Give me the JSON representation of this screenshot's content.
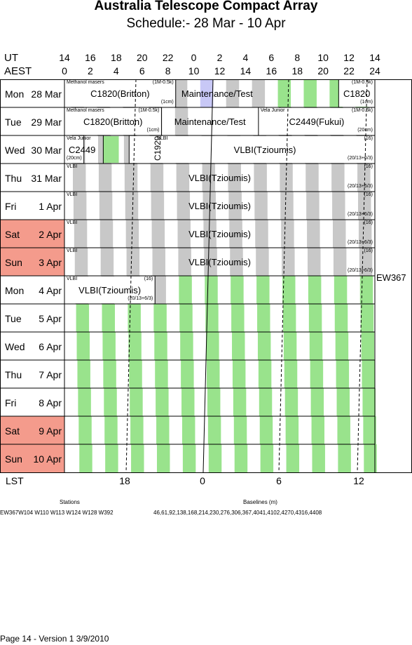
{
  "title": "Australia Telescope Compact Array",
  "subtitle": "Schedule:- 28 Mar - 10 Apr",
  "header": {
    "ut_label": "UT",
    "aest_label": "AEST",
    "ut_ticks": [
      "14",
      "16",
      "18",
      "20",
      "22",
      "0",
      "2",
      "4",
      "6",
      "8",
      "10",
      "12",
      "14"
    ],
    "aest_ticks": [
      "0",
      "2",
      "4",
      "6",
      "8",
      "10",
      "12",
      "14",
      "16",
      "18",
      "20",
      "22",
      "24"
    ]
  },
  "days": [
    {
      "name": "Mon",
      "date": "28 Mar",
      "weekend": false
    },
    {
      "name": "Tue",
      "date": "29 Mar",
      "weekend": false
    },
    {
      "name": "Wed",
      "date": "30 Mar",
      "weekend": false
    },
    {
      "name": "Thu",
      "date": "31 Mar",
      "weekend": false
    },
    {
      "name": "Fri",
      "date": "1 Apr",
      "weekend": false
    },
    {
      "name": "Sat",
      "date": "2 Apr",
      "weekend": true
    },
    {
      "name": "Sun",
      "date": "3 Apr",
      "weekend": true
    },
    {
      "name": "Mon",
      "date": "4 Apr",
      "weekend": false
    },
    {
      "name": "Tue",
      "date": "5 Apr",
      "weekend": false
    },
    {
      "name": "Wed",
      "date": "6 Apr",
      "weekend": false
    },
    {
      "name": "Thu",
      "date": "7 Apr",
      "weekend": false
    },
    {
      "name": "Fri",
      "date": "8 Apr",
      "weekend": false
    },
    {
      "name": "Sat",
      "date": "9 Apr",
      "weekend": true
    },
    {
      "name": "Sun",
      "date": "10 Apr",
      "weekend": true
    }
  ],
  "blocks": {
    "mon28_c1820": {
      "label": "C1820(Britton)",
      "tl": "Methanol masers",
      "tr": "(1M-0.5k)",
      "br": "(1cm)"
    },
    "mon28_maint": {
      "label": "Maintenance/Test"
    },
    "mon28_c1820b": {
      "label": "C1820",
      "tr": "(1M-0.5k)",
      "br": "(1cm)"
    },
    "tue29_c1820": {
      "label": "C1820(Britton)",
      "tl": "Methanol masers",
      "tr": "(1M-0.5k)",
      "br": "(1cm)"
    },
    "tue29_maint": {
      "label": "Maintenance/Test"
    },
    "tue29_c2449": {
      "label": "C2449(Fukui)",
      "tl": "Vela Junior",
      "tr": "(1M-0.5k)",
      "br": "(20cm)"
    },
    "wed30_c2449": {
      "label": "C2449",
      "tl": "Vela Junior",
      "br": "(20cm)"
    },
    "wed30_c1929": {
      "label": "C1929"
    },
    "wed30_vlbi": {
      "label": "VLBI(Tzioumis)",
      "tl": "VLBI",
      "tr": "(16)",
      "br": "(20/13+6/3)"
    },
    "thu31_vlbi": {
      "label": "VLBI(Tzioumis)",
      "tl": "VLBI",
      "tr": "(16)",
      "br": "(20/13+6/3)"
    },
    "fri1_vlbi": {
      "label": "VLBI(Tzioumis)",
      "tl": "VLBI",
      "tr": "(16)",
      "br": "(20/13+6/3)"
    },
    "sat2_vlbi": {
      "label": "VLBI(Tzioumis)",
      "tl": "VLBI",
      "tr": "(16)",
      "br": "(20/13+6/3)"
    },
    "sun3_vlbi": {
      "label": "VLBI(Tzioumis)",
      "tl": "VLBI",
      "tr": "(16)",
      "br": "(20/13+6/3)"
    },
    "mon4_vlbi": {
      "label": "VLBI(Tzioumis)",
      "tl": "VLBI",
      "tr": "(16)",
      "br": "(20/13+6/3)"
    }
  },
  "config_label": "EW367",
  "lst": {
    "label": "LST",
    "ticks": [
      "18",
      "0",
      "6",
      "12"
    ]
  },
  "legend": {
    "stations_header": "Stations",
    "stations": "EW367W104 W110 W113 W124 W128 W392",
    "baselines_header": "Baselines (m)",
    "baselines": "46,61,92,138,168,214,230,276,306,367,4041,4102,4270,4316,4408"
  },
  "footer": "Page 14 - Version 1  3/9/2010",
  "colors": {
    "green": "#99e38c",
    "grey": "#c8c8c8",
    "blue": "#c8c8f6",
    "weekend": "#f49b8c"
  }
}
